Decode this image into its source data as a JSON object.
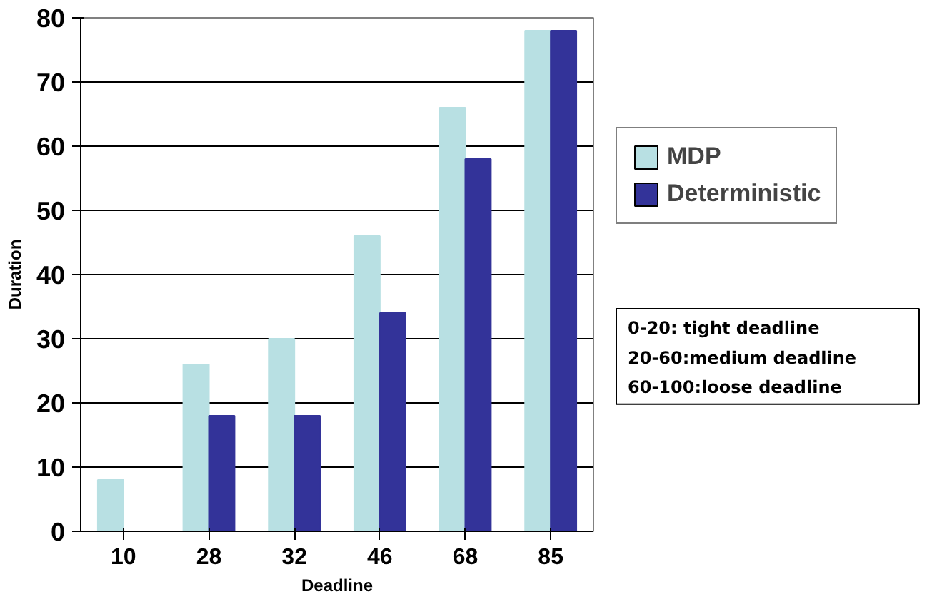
{
  "chart_data": {
    "type": "bar",
    "xlabel": "Deadline",
    "ylabel": "Duration",
    "categories": [
      "10",
      "28",
      "32",
      "46",
      "68",
      "85"
    ],
    "series": [
      {
        "name": "MDP",
        "color": "#b8e0e3",
        "values": [
          8,
          26,
          30,
          46,
          66,
          78
        ]
      },
      {
        "name": "Deterministic",
        "color": "#333399",
        "values": [
          0,
          18,
          18,
          34,
          58,
          78
        ]
      }
    ],
    "ylim": [
      0,
      80
    ],
    "yticks": [
      0,
      10,
      20,
      30,
      40,
      50,
      60,
      70,
      80
    ],
    "grid": "y",
    "legend": "right",
    "annotations": [
      "0-20: tight deadline",
      "20-60:medium deadline",
      "60-100:loose deadline"
    ]
  }
}
